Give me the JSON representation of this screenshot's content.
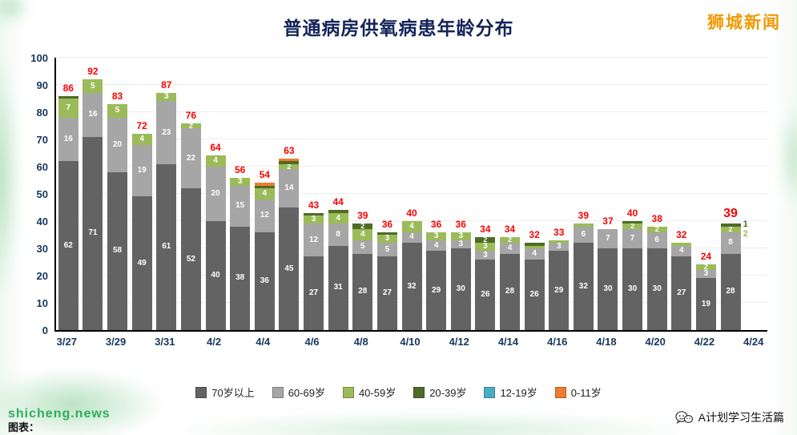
{
  "title": "普通病房供氧病患年龄分布",
  "watermark_top_right": "狮城新闻",
  "footer": {
    "left_site": "shicheng.news",
    "left_caption": "图表：",
    "right_brand": "A计划学习生活篇",
    "chat_icon": "chat-bubbles-icon"
  },
  "colors": {
    "title": "#14235a",
    "total_label": "#ff0000",
    "brand_orange": "#f39800",
    "site_green": "#2fae5d",
    "axis": "#000000"
  },
  "chart_data": {
    "type": "bar",
    "stacked": true,
    "title": "普通病房供氧病患年龄分布",
    "xlabel": "",
    "ylabel": "",
    "ylim": [
      0,
      100
    ],
    "ytick_step": 10,
    "grid": true,
    "legend_position": "bottom",
    "x": [
      "3/27",
      "3/28",
      "3/29",
      "3/30",
      "3/31",
      "4/1",
      "4/2",
      "4/3",
      "4/4",
      "4/5",
      "4/6",
      "4/7",
      "4/8",
      "4/9",
      "4/10",
      "4/11",
      "4/12",
      "4/13",
      "4/14",
      "4/15",
      "4/16",
      "4/17",
      "4/18",
      "4/19",
      "4/20",
      "4/21",
      "4/22",
      "4/23"
    ],
    "xticks": [
      "3/27",
      "3/29",
      "3/31",
      "4/2",
      "4/4",
      "4/6",
      "4/8",
      "4/10",
      "4/12",
      "4/14",
      "4/16",
      "4/18",
      "4/20",
      "4/22",
      "4/24"
    ],
    "series": [
      {
        "name": "70岁以上",
        "color": "#636363",
        "values": [
          62,
          71,
          58,
          49,
          61,
          52,
          40,
          38,
          36,
          45,
          27,
          31,
          28,
          27,
          32,
          29,
          30,
          26,
          28,
          26,
          29,
          32,
          30,
          30,
          30,
          27,
          19,
          28
        ]
      },
      {
        "name": "60-69岁",
        "color": "#a6a6a6",
        "values": [
          16,
          16,
          20,
          19,
          23,
          22,
          20,
          15,
          12,
          14,
          12,
          8,
          5,
          5,
          4,
          4,
          3,
          3,
          4,
          4,
          3,
          6,
          7,
          7,
          6,
          4,
          3,
          8
        ]
      },
      {
        "name": "40-59岁",
        "color": "#9bbb59",
        "values": [
          7,
          5,
          5,
          4,
          3,
          2,
          4,
          3,
          4,
          2,
          3,
          4,
          4,
          3,
          4,
          3,
          3,
          3,
          2,
          1,
          1,
          1,
          0,
          2,
          2,
          1,
          2,
          2
        ]
      },
      {
        "name": "20-39岁",
        "color": "#4f6b28",
        "values": [
          1,
          0,
          0,
          0,
          0,
          0,
          0,
          0,
          1,
          1,
          1,
          1,
          2,
          1,
          0,
          0,
          0,
          2,
          0,
          1,
          0,
          0,
          0,
          1,
          0,
          0,
          0,
          1
        ]
      },
      {
        "name": "12-19岁",
        "color": "#4bacc6",
        "values": [
          0,
          0,
          0,
          0,
          0,
          0,
          0,
          0,
          0,
          0,
          0,
          0,
          0,
          0,
          0,
          0,
          0,
          0,
          0,
          0,
          0,
          0,
          0,
          0,
          0,
          0,
          0,
          0
        ]
      },
      {
        "name": "0-11岁",
        "color": "#ed7d31",
        "values": [
          0,
          0,
          0,
          0,
          0,
          0,
          0,
          0,
          1,
          1,
          0,
          0,
          0,
          0,
          0,
          0,
          0,
          0,
          0,
          0,
          0,
          0,
          0,
          0,
          0,
          0,
          0,
          0
        ]
      }
    ],
    "totals": [
      86,
      92,
      83,
      72,
      87,
      76,
      64,
      56,
      54,
      63,
      43,
      44,
      39,
      36,
      40,
      36,
      36,
      34,
      34,
      32,
      33,
      39,
      37,
      40,
      38,
      32,
      24,
      39
    ],
    "right_annotations": [
      {
        "text": "1",
        "color": "#4f6b28"
      },
      {
        "text": "2",
        "color": "#9bbb59"
      }
    ]
  }
}
